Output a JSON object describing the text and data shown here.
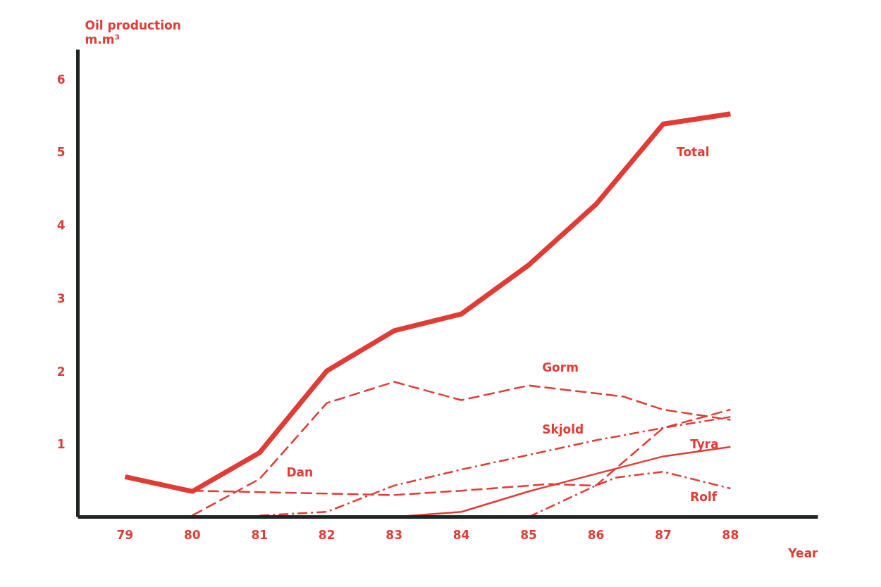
{
  "chart_data": {
    "type": "line",
    "xlabel": "Year",
    "ylabel": "Oil production\nm.m³",
    "xlim": [
      78.3,
      89.3
    ],
    "ylim": [
      0,
      6.4
    ],
    "xticks": [
      79,
      80,
      81,
      82,
      83,
      84,
      85,
      86,
      87,
      88
    ],
    "yticks": [
      1,
      2,
      3,
      4,
      5,
      6
    ],
    "grid": false,
    "legend": false,
    "marker": "none",
    "series": [
      {
        "name": "Total",
        "color": "#e03c36",
        "line_style": "solid",
        "x": [
          79,
          80,
          81,
          82,
          83,
          84,
          85,
          86,
          87,
          88
        ],
        "values": [
          0.55,
          0.35,
          0.88,
          2.0,
          2.55,
          2.78,
          3.45,
          4.28,
          5.38,
          5.52
        ]
      },
      {
        "name": "Gorm",
        "color": "#e03c36",
        "line_style": "dashed",
        "x": [
          80,
          81,
          82,
          83,
          84,
          85,
          86.4,
          87,
          88
        ],
        "values": [
          0.02,
          0.52,
          1.56,
          1.85,
          1.6,
          1.8,
          1.65,
          1.47,
          1.33
        ]
      },
      {
        "name": "Dan",
        "color": "#e03c36",
        "line_style": "dashed",
        "x": [
          80,
          83,
          84,
          85.3,
          86,
          87,
          88
        ],
        "values": [
          0.36,
          0.3,
          0.36,
          0.45,
          0.43,
          1.22,
          1.47
        ]
      },
      {
        "name": "Skjold",
        "color": "#e03c36",
        "line_style": "dashdot",
        "x": [
          81,
          82,
          83,
          84,
          85,
          86,
          87,
          88
        ],
        "values": [
          0.02,
          0.07,
          0.43,
          0.65,
          0.85,
          1.05,
          1.22,
          1.37
        ]
      },
      {
        "name": "Tyra",
        "color": "#e03c36",
        "line_style": "solid",
        "x": [
          83,
          84,
          85,
          87,
          88
        ],
        "values": [
          0,
          0.07,
          0.35,
          0.83,
          0.96
        ]
      },
      {
        "name": "Rolf",
        "color": "#e03c36",
        "line_style": "dashdot",
        "x": [
          85,
          86,
          86.3,
          87,
          88
        ],
        "values": [
          0,
          0.43,
          0.54,
          0.62,
          0.39
        ]
      }
    ]
  }
}
